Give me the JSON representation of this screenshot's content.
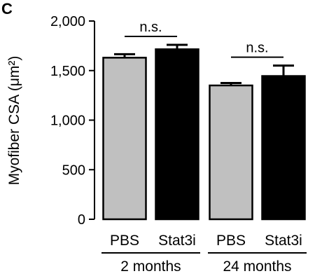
{
  "panel_label": "C",
  "chart_data": {
    "type": "bar",
    "title": "",
    "ylabel": "Myofiber CSA (μm²)",
    "xlabel": "",
    "ylim": [
      0,
      2000
    ],
    "yticks": [
      0,
      500,
      1000,
      1500,
      2000
    ],
    "ytick_labels": [
      "0",
      "500",
      "1,000",
      "1,500",
      "2,000"
    ],
    "groups": [
      {
        "label": "2 months",
        "bars": [
          {
            "category": "PBS",
            "value": 1630,
            "error": 35,
            "color": "#c0c0c0"
          },
          {
            "category": "Stat3i",
            "value": 1715,
            "error": 45,
            "color": "#000000"
          }
        ],
        "annotation": "n.s."
      },
      {
        "label": "24 months",
        "bars": [
          {
            "category": "PBS",
            "value": 1350,
            "error": 25,
            "color": "#c0c0c0"
          },
          {
            "category": "Stat3i",
            "value": 1445,
            "error": 105,
            "color": "#000000"
          }
        ],
        "annotation": "n.s."
      }
    ]
  }
}
